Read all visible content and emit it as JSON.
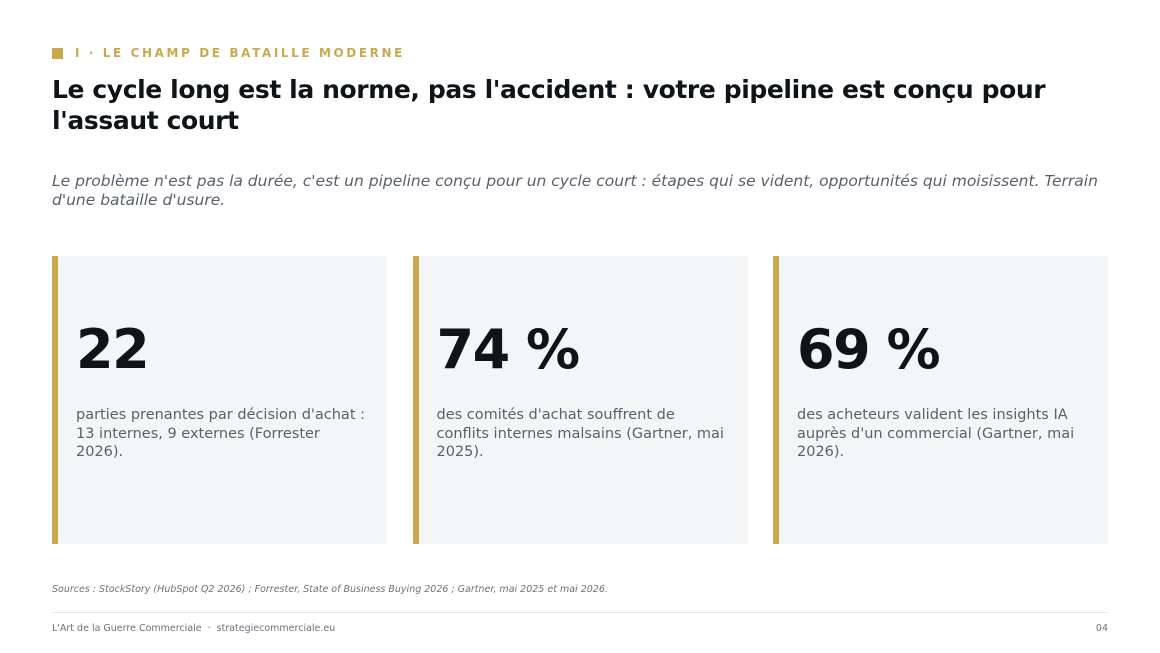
{
  "header": {
    "kicker": "I · LE CHAMP DE BATAILLE MODERNE",
    "title": "Le cycle long est la norme, pas l'accident : votre pipeline est conçu pour l'assaut court",
    "subtitle": "Le problème n'est pas la durée, c'est un pipeline conçu pour un cycle court : étapes qui se vident, opportunités qui moisissent. Terrain d'une bataille d'usure."
  },
  "stats": [
    {
      "value": "22",
      "description": "parties prenantes par décision d'achat : 13 internes, 9 externes (Forrester 2026)."
    },
    {
      "value": "74 %",
      "description": "des comités d'achat souffrent de conflits internes malsains (Gartner, mai 2025)."
    },
    {
      "value": "69 %",
      "description": "des acheteurs valident les insights IA auprès d'un commercial (Gartner, mai 2026)."
    }
  ],
  "sources": "Sources : StockStory (HubSpot Q2 2026) ; Forrester, State of Business Buying 2026 ; Gartner, mai 2025 et mai 2026.",
  "footer": {
    "brand": "L'Art de la Guerre Commerciale",
    "separator": "·",
    "website": "strategiecommerciale.eu",
    "page_number": "04"
  },
  "colors": {
    "accent": "#c9a94d",
    "title": "#0f1419",
    "muted_text": "#59606b",
    "card_background": "#f4f5f7"
  }
}
